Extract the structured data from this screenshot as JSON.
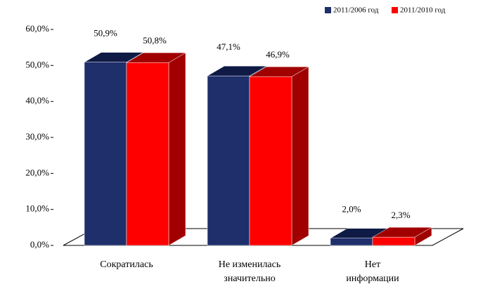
{
  "chart_data": {
    "type": "bar3d",
    "categories": [
      "Сократилась",
      "Не изменилась\nзначительно",
      "Нет\nинформации"
    ],
    "series": [
      {
        "name": "2011/2006 год",
        "color": "#1f2f6b",
        "side": "#0f1a45",
        "values": [
          50.9,
          47.1,
          2.0
        ],
        "value_labels": [
          "50,9%",
          "47,1%",
          "2,0%"
        ]
      },
      {
        "name": "2011/2010 год",
        "color": "#ff0000",
        "side": "#a00000",
        "values": [
          50.8,
          46.9,
          2.3
        ],
        "value_labels": [
          "50,8%",
          "46,9%",
          "2,3%"
        ]
      }
    ],
    "ylim": [
      0,
      60
    ],
    "yticks": [
      {
        "value": 0,
        "label": "0,0%"
      },
      {
        "value": 10,
        "label": "10,0%"
      },
      {
        "value": 20,
        "label": "20,0%"
      },
      {
        "value": 30,
        "label": "30,0%"
      },
      {
        "value": 40,
        "label": "40,0%"
      },
      {
        "value": 50,
        "label": "50,0%"
      },
      {
        "value": 60,
        "label": "60,0%"
      }
    ]
  }
}
